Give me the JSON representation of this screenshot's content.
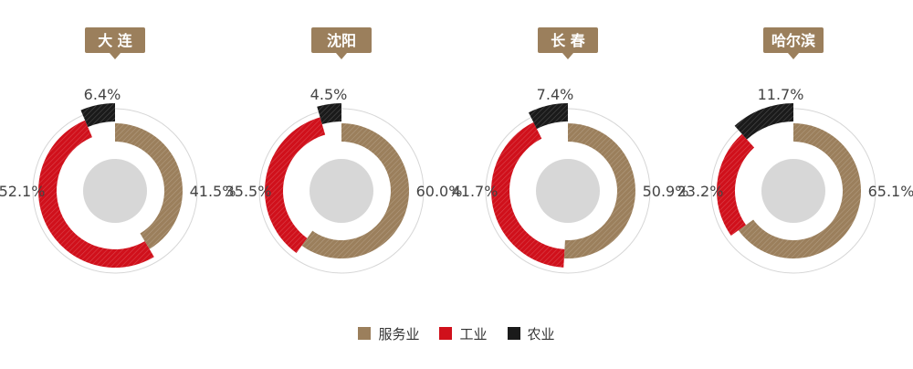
{
  "chart_data": {
    "type": "pie",
    "legend": [
      "服务业",
      "工业",
      "农业"
    ],
    "colors": {
      "服务业": "#9b7f5c",
      "工业": "#d0101b",
      "农业": "#1a1a1a"
    },
    "charts": [
      {
        "city": "大 连",
        "values": {
          "服务业": 41.5,
          "工业": 52.1,
          "农业": 6.4
        },
        "labels": {
          "服务业": "41.5%",
          "工业": "52.1%",
          "农业": "6.4%"
        }
      },
      {
        "city": "沈阳",
        "values": {
          "服务业": 60.0,
          "工业": 35.5,
          "农业": 4.5
        },
        "labels": {
          "服务业": "60.0%",
          "工业": "35.5%",
          "农业": "4.5%"
        }
      },
      {
        "city": "长 春",
        "values": {
          "服务业": 50.9,
          "工业": 41.7,
          "农业": 7.4
        },
        "labels": {
          "服务业": "50.9%",
          "工业": "41.7%",
          "农业": "7.4%"
        }
      },
      {
        "city": "哈尔滨",
        "values": {
          "服务业": 65.1,
          "工业": 23.2,
          "农业": 11.7
        },
        "labels": {
          "服务业": "65.1%",
          "工业": "23.2%",
          "农业": "11.7%"
        }
      }
    ]
  }
}
